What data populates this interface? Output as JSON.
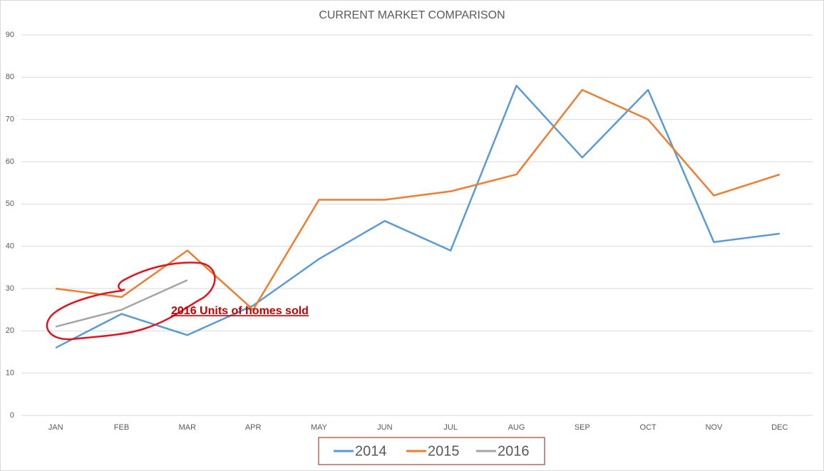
{
  "chart_data": {
    "type": "line",
    "title": "CURRENT MARKET COMPARISON",
    "categories": [
      "JAN",
      "FEB",
      "MAR",
      "APR",
      "MAY",
      "JUN",
      "JUL",
      "AUG",
      "SEP",
      "OCT",
      "NOV",
      "DEC"
    ],
    "series": [
      {
        "name": "2014",
        "color": "#5b9bd5",
        "values": [
          16,
          24,
          19,
          26,
          37,
          46,
          39,
          78,
          61,
          77,
          41,
          43
        ]
      },
      {
        "name": "2015",
        "color": "#ed7d31",
        "values": [
          30,
          28,
          39,
          25,
          51,
          51,
          53,
          57,
          77,
          70,
          52,
          57
        ]
      },
      {
        "name": "2016",
        "color": "#a5a5a5",
        "values": [
          21,
          25,
          32,
          null,
          null,
          null,
          null,
          null,
          null,
          null,
          null,
          null
        ]
      }
    ],
    "ylim": [
      0,
      90
    ],
    "yticks": [
      0,
      10,
      20,
      30,
      40,
      50,
      60,
      70,
      80,
      90
    ],
    "grid": true,
    "legend": "bottom",
    "annotation": "2016 Units of homes sold"
  }
}
